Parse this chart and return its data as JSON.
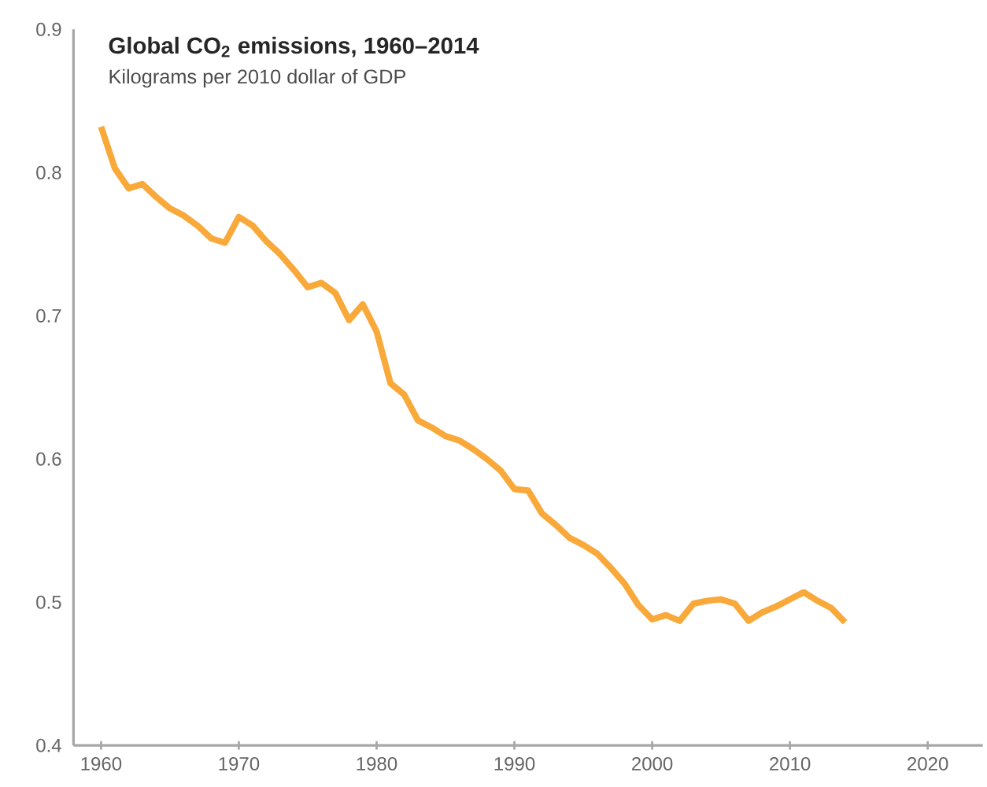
{
  "chart_data": {
    "type": "line",
    "title": "Global CO$_{2}$ emissions, 1960–2014",
    "subtitle": "Kilograms per 2010 dollar of GDP",
    "x": [
      1960,
      1961,
      1962,
      1963,
      1964,
      1965,
      1966,
      1967,
      1968,
      1969,
      1970,
      1971,
      1972,
      1973,
      1974,
      1975,
      1976,
      1977,
      1978,
      1979,
      1980,
      1981,
      1982,
      1983,
      1984,
      1985,
      1986,
      1987,
      1988,
      1989,
      1990,
      1991,
      1992,
      1993,
      1994,
      1995,
      1996,
      1997,
      1998,
      1999,
      2000,
      2001,
      2002,
      2003,
      2004,
      2005,
      2006,
      2007,
      2008,
      2009,
      2010,
      2011,
      2012,
      2013,
      2014
    ],
    "series": [
      {
        "color": "#f9a93a",
        "values": [
          0.832,
          0.803,
          0.789,
          0.792,
          0.783,
          0.775,
          0.77,
          0.763,
          0.754,
          0.751,
          0.769,
          0.763,
          0.752,
          0.743,
          0.732,
          0.72,
          0.723,
          0.716,
          0.697,
          0.708,
          0.689,
          0.653,
          0.645,
          0.627,
          0.622,
          0.616,
          0.613,
          0.607,
          0.6,
          0.592,
          0.579,
          0.578,
          0.562,
          0.554,
          0.545,
          0.54,
          0.534,
          0.524,
          0.513,
          0.498,
          0.488,
          0.491,
          0.487,
          0.499,
          0.501,
          0.502,
          0.499,
          0.487,
          0.493,
          0.497,
          0.502,
          0.507,
          0.501,
          0.496,
          0.486
        ]
      }
    ],
    "xlim": [
      1958,
      2024
    ],
    "ylim": [
      0.4,
      0.9
    ],
    "xticks": [
      1960,
      1970,
      1980,
      1990,
      2000,
      2010,
      2020
    ],
    "yticks": [
      0.4,
      0.5,
      0.6,
      0.7,
      0.8,
      0.9
    ],
    "grid": false,
    "marker": "none",
    "line_style": "solid"
  }
}
